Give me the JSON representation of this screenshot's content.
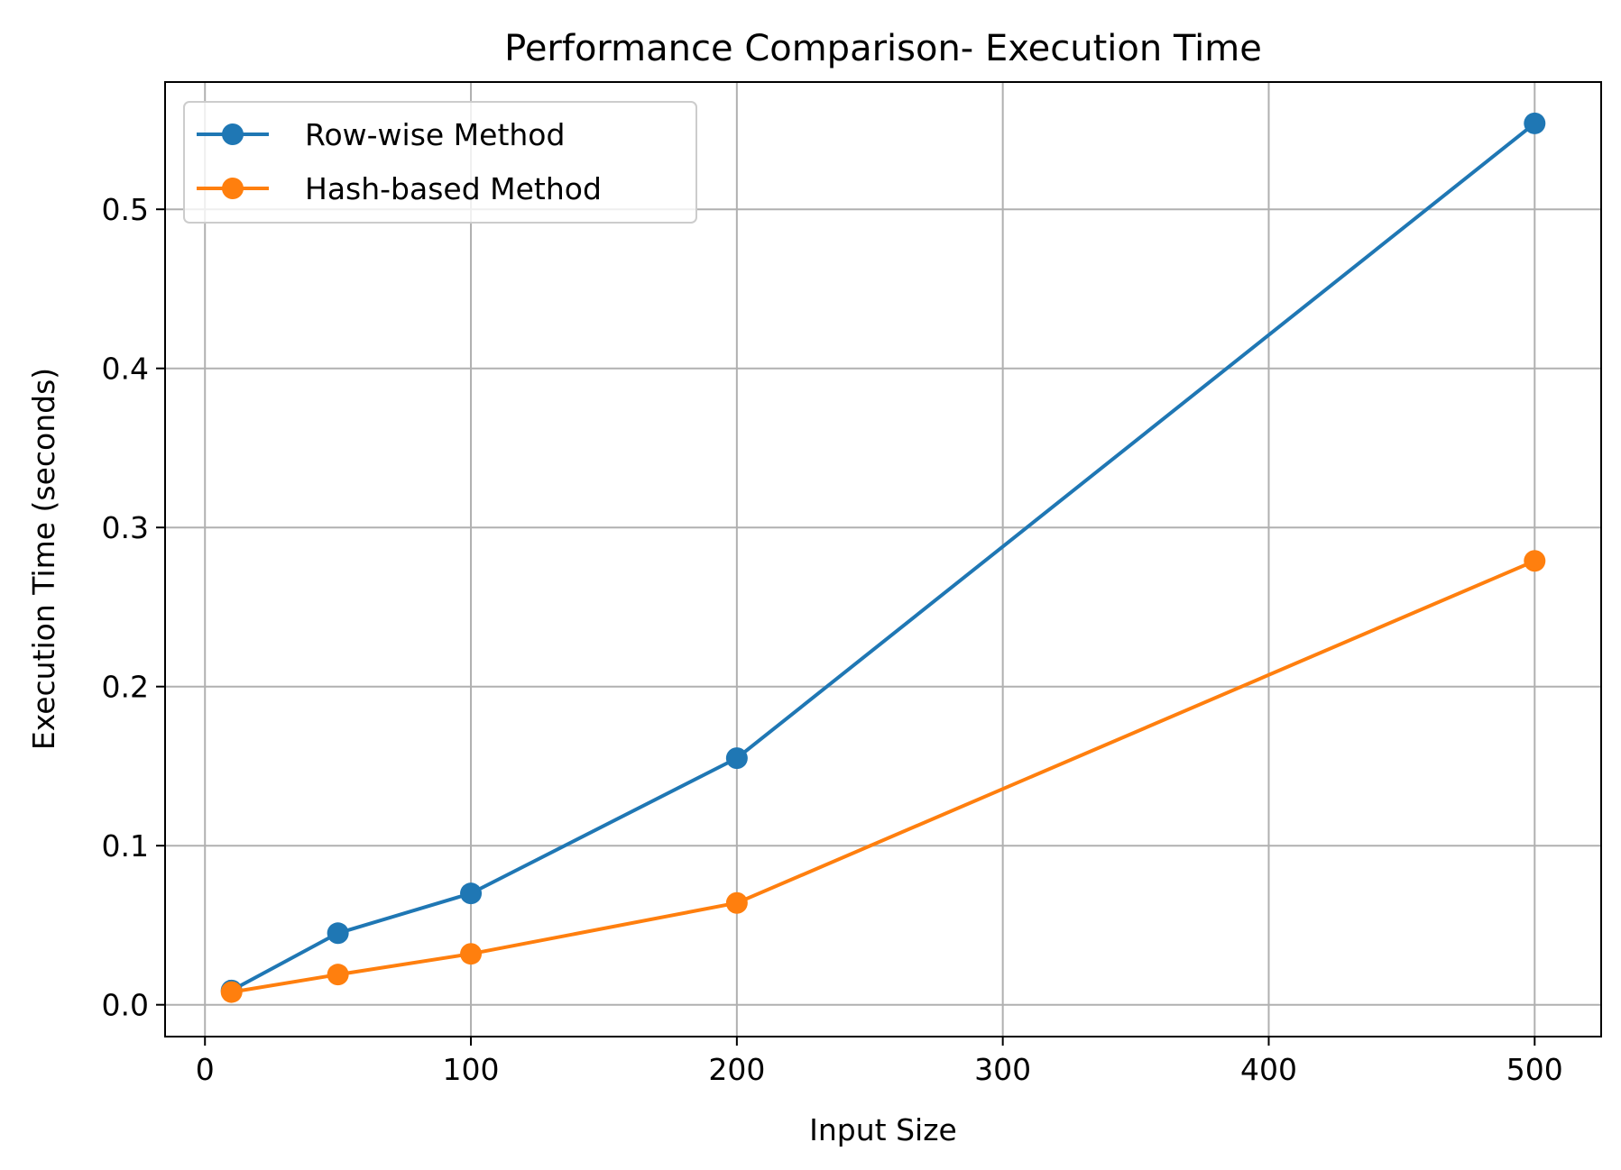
{
  "chart_data": {
    "type": "line",
    "title": "Performance Comparison- Execution Time",
    "xlabel": "Input Size",
    "ylabel": "Execution Time (seconds)",
    "xlim": [
      -15,
      525
    ],
    "ylim": [
      -0.02,
      0.58
    ],
    "xticks": [
      0,
      100,
      200,
      300,
      400,
      500
    ],
    "yticks": [
      0.0,
      0.1,
      0.2,
      0.3,
      0.4,
      0.5
    ],
    "xtick_labels": [
      "0",
      "100",
      "200",
      "300",
      "400",
      "500"
    ],
    "ytick_labels": [
      "0.0",
      "0.1",
      "0.2",
      "0.3",
      "0.4",
      "0.5"
    ],
    "grid": true,
    "legend_position": "upper-left",
    "x": [
      10,
      50,
      100,
      200,
      500
    ],
    "series": [
      {
        "name": "Row-wise Method",
        "color": "#1f77b4",
        "marker": "circle",
        "values": [
          0.009,
          0.045,
          0.07,
          0.155,
          0.554
        ]
      },
      {
        "name": "Hash-based Method",
        "color": "#ff7f0e",
        "marker": "circle",
        "values": [
          0.008,
          0.019,
          0.032,
          0.064,
          0.279
        ]
      }
    ]
  }
}
